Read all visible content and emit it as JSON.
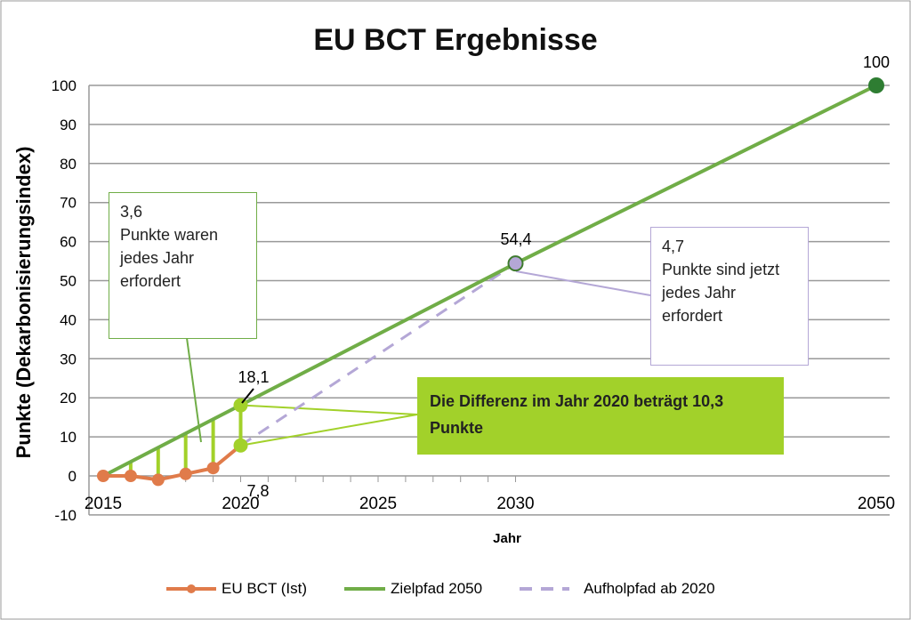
{
  "chart_data": {
    "type": "line",
    "title": "EU BCT Ergebnisse",
    "xlabel": "Jahr",
    "ylabel": "Punkte (Dekarbonisierungsindex)",
    "ylim": [
      -10,
      100
    ],
    "yticks": [
      -10,
      0,
      10,
      20,
      30,
      40,
      50,
      60,
      70,
      80,
      90,
      100
    ],
    "xtick_labels": [
      "2015",
      "2020",
      "2025",
      "2030",
      "2050"
    ],
    "grid": true,
    "legend_position": "bottom",
    "series": [
      {
        "name": "EU BCT (Ist)",
        "color": "#E07B4A",
        "x": [
          2015,
          2016,
          2017,
          2018,
          2019,
          2020
        ],
        "values": [
          0,
          0,
          -1,
          0.5,
          2,
          7.8
        ]
      },
      {
        "name": "Zielpfad 2050",
        "color": "#70AD47",
        "x": [
          2015,
          2030,
          2050
        ],
        "values": [
          0,
          54.4,
          100
        ]
      },
      {
        "name": "Aufholpfad ab 2020",
        "color": "#B4A7D6",
        "x": [
          2020,
          2030
        ],
        "values": [
          7.8,
          54.4
        ]
      }
    ],
    "point_labels": [
      {
        "x": 2020,
        "y": 18.1,
        "text": "18,1"
      },
      {
        "x": 2020,
        "y": 7.8,
        "text": "7,8"
      },
      {
        "x": 2030,
        "y": 54.4,
        "text": "54,4"
      },
      {
        "x": 2050,
        "y": 100,
        "text": "100"
      }
    ],
    "annotations": {
      "left": {
        "value": "3,6",
        "text": "Punkte waren jedes Jahr erfordert"
      },
      "right": {
        "value": "4,7",
        "text": "Punkte sind jetzt jedes Jahr erfordert"
      },
      "diff": "Die Differenz im Jahr 2020 beträgt 10,3 Punkte"
    }
  }
}
